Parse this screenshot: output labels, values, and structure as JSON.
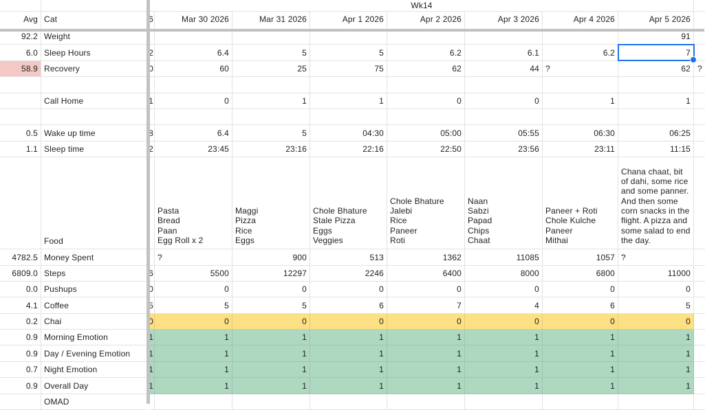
{
  "sheet": {
    "week_label": "Wk14",
    "corner": {
      "avg_header": "Avg",
      "cat_header": "Cat",
      "stub_header": "6"
    },
    "date_headers": [
      "Mar 30 2026",
      "Mar 31 2026",
      "Apr 1 2026",
      "Apr 2 2026",
      "Apr 3 2026",
      "Apr 4 2026",
      "Apr 5 2026"
    ],
    "colors": {
      "selection_blue": "#1a73e8",
      "chai_yellow": "#fce083",
      "emotion_green": "#aed8c0",
      "recovery_pink": "#f4c8c4"
    },
    "selection": {
      "row": "sleep-hours",
      "col": 6,
      "value": "7"
    },
    "rows": [
      {
        "key": "weight",
        "avg": "92.2",
        "label": "Weight",
        "stub": "",
        "cells": [
          "",
          "",
          "",
          "",
          "",
          "",
          "91"
        ],
        "tail": ""
      },
      {
        "key": "sleep-hours",
        "avg": "6.0",
        "label": "Sleep Hours",
        "stub": "2",
        "cells": [
          "6.4",
          "5",
          "5",
          "6.2",
          "6.1",
          "6.2",
          "7"
        ],
        "tail": ""
      },
      {
        "key": "recovery",
        "avg": "58.9",
        "avg_bg": "recovery_pink",
        "label": "Recovery",
        "stub": "0",
        "cells": [
          "60",
          "25",
          "75",
          "62",
          "44",
          "?",
          "62"
        ],
        "tail": "?"
      },
      {
        "key": "blank-1",
        "avg": "",
        "label": "",
        "stub": "",
        "cells": [
          "",
          "",
          "",
          "",
          "",
          "",
          ""
        ],
        "tail": ""
      },
      {
        "key": "call-home",
        "avg": "",
        "label": "Call Home",
        "stub": "1",
        "cells": [
          "0",
          "1",
          "1",
          "0",
          "0",
          "1",
          "1"
        ],
        "tail": ""
      },
      {
        "key": "blank-2",
        "avg": "",
        "label": "",
        "stub": "",
        "cells": [
          "",
          "",
          "",
          "",
          "",
          "",
          ""
        ],
        "tail": ""
      },
      {
        "key": "wake-up-time",
        "avg": "0.5",
        "label": "Wake up time",
        "stub": "8",
        "cells": [
          "6.4",
          "5",
          "04:30",
          "05:00",
          "05:55",
          "06:30",
          "06:25"
        ],
        "tail": ""
      },
      {
        "key": "sleep-time",
        "avg": "1.1",
        "label": "Sleep time",
        "stub": "2",
        "cells": [
          "23:45",
          "23:16",
          "22:16",
          "22:50",
          "23:56",
          "23:11",
          "11:15"
        ],
        "tail": ""
      },
      {
        "key": "food",
        "avg": "",
        "label": "Food",
        "stub": "",
        "food": true,
        "cells": [
          "Pasta\nBread\nPaan\nEgg Roll x 2",
          "Maggi\nPizza\nRice\nEggs",
          "Chole Bhature\nStale Pizza\nEggs\nVeggies",
          "Chole Bhature\nJalebi\nRice\nPaneer\nRoti",
          "Naan\nSabzi\nPapad\nChips\nChaat",
          "Paneer + Roti\nChole Kulche\nPaneer\nMithai",
          "Chana chaat, bit of dahi, some rice and some panner. And then some corn snacks in the flight. A pizza and some salad to end the day."
        ],
        "tail": ""
      },
      {
        "key": "money-spent",
        "avg": "4782.5",
        "label": "Money Spent",
        "stub": "",
        "cells": [
          "?",
          "900",
          "513",
          "1362",
          "11085",
          "1057",
          "?"
        ],
        "tail": ""
      },
      {
        "key": "steps",
        "avg": "6809.0",
        "label": "Steps",
        "stub": "6",
        "cells": [
          "5500",
          "12297",
          "2246",
          "6400",
          "8000",
          "6800",
          "11000"
        ],
        "tail": ""
      },
      {
        "key": "pushups",
        "avg": "0.0",
        "label": "Pushups",
        "stub": "0",
        "cells": [
          "0",
          "0",
          "0",
          "0",
          "0",
          "0",
          "0"
        ],
        "tail": ""
      },
      {
        "key": "coffee",
        "avg": "4.1",
        "label": "Coffee",
        "stub": "5",
        "cells": [
          "5",
          "5",
          "6",
          "7",
          "4",
          "6",
          "5"
        ],
        "tail": ""
      },
      {
        "key": "chai",
        "avg": "0.2",
        "label": "Chai",
        "stub": "0",
        "bg": "chai_yellow",
        "cells": [
          "0",
          "0",
          "0",
          "0",
          "0",
          "0",
          "0"
        ],
        "tail": ""
      },
      {
        "key": "morning-emotion",
        "avg": "0.9",
        "label": "Morning Emotion",
        "stub": "1",
        "bg": "emotion_green",
        "cells": [
          "1",
          "1",
          "1",
          "1",
          "1",
          "1",
          "1"
        ],
        "tail": ""
      },
      {
        "key": "day-evening-emotion",
        "avg": "0.9",
        "label": "Day / Evening Emotion",
        "stub": "1",
        "bg": "emotion_green",
        "cells": [
          "1",
          "1",
          "1",
          "1",
          "1",
          "1",
          "1"
        ],
        "tail": ""
      },
      {
        "key": "night-emotion",
        "avg": "0.7",
        "label": "Night Emotion",
        "stub": "1",
        "bg": "emotion_green",
        "cells": [
          "1",
          "1",
          "1",
          "1",
          "1",
          "1",
          "1"
        ],
        "tail": ""
      },
      {
        "key": "overall-day",
        "avg": "0.9",
        "label": "Overall Day",
        "stub": "1",
        "bg": "emotion_green",
        "cells": [
          "1",
          "1",
          "1",
          "1",
          "1",
          "1",
          "1"
        ],
        "tail": ""
      },
      {
        "key": "omad",
        "avg": "",
        "label": "OMAD",
        "stub": "",
        "cells": [
          "",
          "",
          "",
          "",
          "",
          "",
          ""
        ],
        "tail": ""
      }
    ]
  }
}
